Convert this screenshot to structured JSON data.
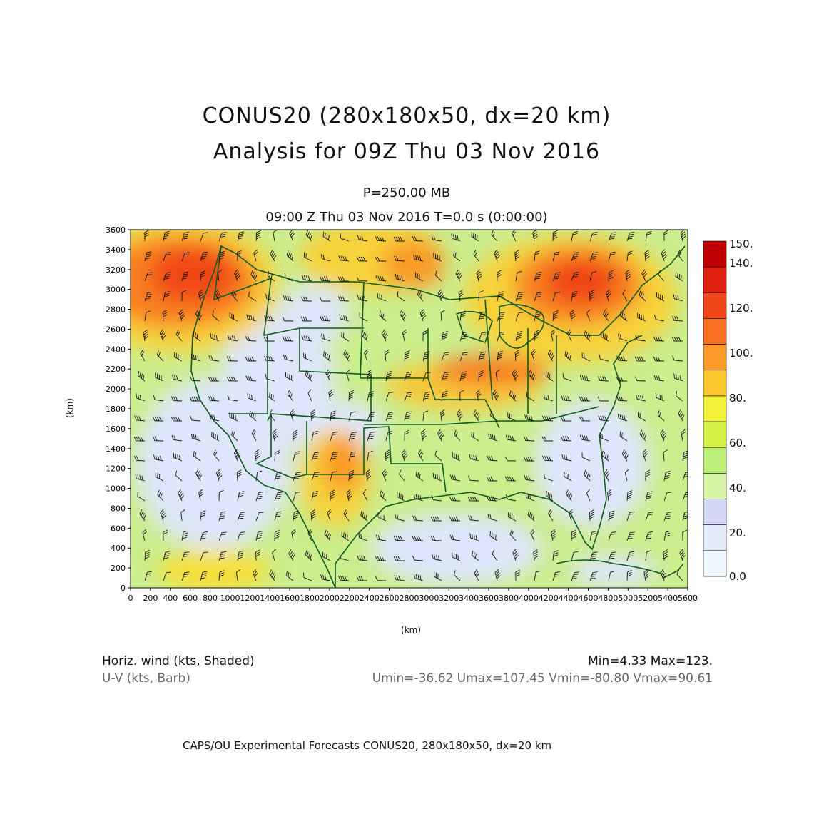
{
  "titles": {
    "line1": "CONUS20 (280x180x50, dx=20 km)",
    "line2": "Analysis for 09Z Thu 03 Nov 2016",
    "level": "P=250.00 MB",
    "time": "09:00 Z Thu 03 Nov 2016    T=0.0 s (0:00:00)"
  },
  "axes": {
    "x_label": "(km)",
    "y_label": "(km)",
    "x_ticks": [
      "0",
      "200",
      "400",
      "600",
      "800",
      "1000",
      "1200",
      "1400",
      "1600",
      "1800",
      "2000",
      "2200",
      "2400",
      "2600",
      "2800",
      "3000",
      "3200",
      "3400",
      "3600",
      "3800",
      "4000",
      "4200",
      "4400",
      "4600",
      "4800",
      "5000",
      "5200",
      "5400",
      "5600"
    ],
    "y_ticks": [
      "0",
      "200",
      "400",
      "600",
      "800",
      "1000",
      "1200",
      "1400",
      "1600",
      "1800",
      "2000",
      "2200",
      "2400",
      "2600",
      "2800",
      "3000",
      "3200",
      "3400",
      "3600"
    ],
    "x_range": [
      0,
      5600
    ],
    "y_range": [
      0,
      3600
    ]
  },
  "colorbar": {
    "labels": [
      "150.",
      "140.",
      "120.",
      "100.",
      "80.",
      "60.",
      "40.",
      "20.",
      "0.0"
    ],
    "colors": [
      "#c00000",
      "#e02010",
      "#f04818",
      "#f87020",
      "#fa9a28",
      "#fcc830",
      "#f2f23a",
      "#d6f046",
      "#bef07a",
      "#d6f4a6",
      "#d4d8f6",
      "#e2ecfa",
      "#eef8fc"
    ]
  },
  "footer": {
    "left1": "Horiz. wind (kts, Shaded)",
    "left2": "U-V (kts, Barb)",
    "right1": "Min=4.33 Max=123.",
    "right2": "Umin=-36.62 Umax=107.45 Vmin=-80.80 Vmax=90.61",
    "credit": "CAPS/OU Experimental Forecasts  CONUS20, 280x180x50, dx=20 km"
  }
}
